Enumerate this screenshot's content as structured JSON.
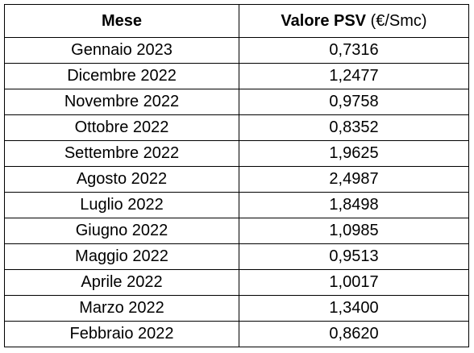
{
  "table": {
    "header": {
      "month_label": "Mese",
      "value_label_bold": "Valore PSV",
      "value_label_unit": "(€/Smc)"
    },
    "rows": [
      {
        "month": "Gennaio 2023",
        "value": "0,7316"
      },
      {
        "month": "Dicembre 2022",
        "value": "1,2477"
      },
      {
        "month": "Novembre 2022",
        "value": "0,9758"
      },
      {
        "month": "Ottobre 2022",
        "value": "0,8352"
      },
      {
        "month": "Settembre 2022",
        "value": "1,9625"
      },
      {
        "month": "Agosto 2022",
        "value": "2,4987"
      },
      {
        "month": "Luglio 2022",
        "value": "1,8498"
      },
      {
        "month": "Giugno 2022",
        "value": "1,0985"
      },
      {
        "month": "Maggio 2022",
        "value": "0,9513"
      },
      {
        "month": "Aprile 2022",
        "value": "1,0017"
      },
      {
        "month": "Marzo 2022",
        "value": "1,3400"
      },
      {
        "month": "Febbraio 2022",
        "value": "0,8620"
      }
    ]
  }
}
